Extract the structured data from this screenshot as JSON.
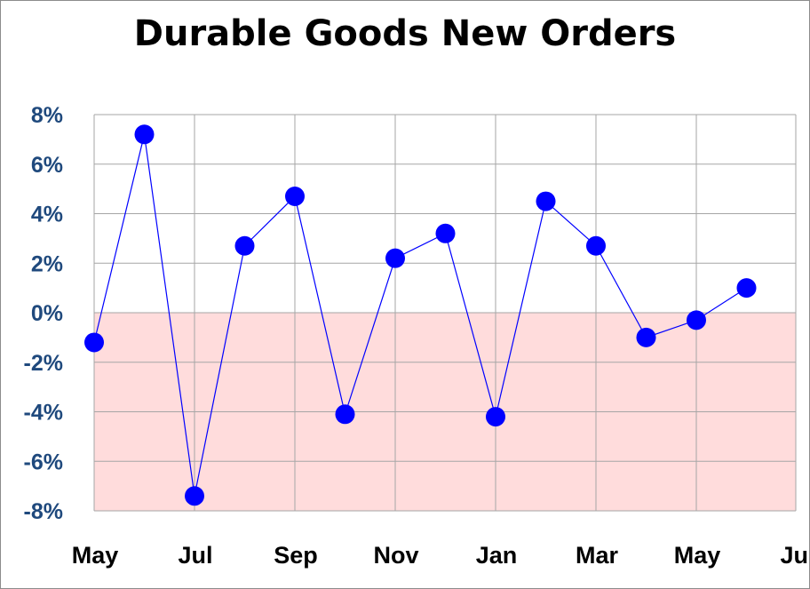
{
  "chart_data": {
    "type": "line",
    "title": "Durable Goods New Orders",
    "xlabel": "",
    "ylabel": "",
    "x_tick_labels": [
      "May",
      "Jul",
      "Sep",
      "Nov",
      "Jan",
      "Mar",
      "May",
      "Jul"
    ],
    "y_tick_labels": [
      "8%",
      "6%",
      "4%",
      "2%",
      "0%",
      "-2%",
      "-4%",
      "-6%",
      "-8%"
    ],
    "ylim": [
      -8,
      8
    ],
    "y_ticks": [
      8,
      6,
      4,
      2,
      0,
      -2,
      -4,
      -6,
      -8
    ],
    "grid": true,
    "negative_region_shaded": true,
    "series": [
      {
        "x": [
          "May",
          "Jun",
          "Jul",
          "Aug",
          "Sep",
          "Oct",
          "Nov",
          "Dec",
          "Jan",
          "Feb",
          "Mar",
          "Apr",
          "May",
          "Jun"
        ],
        "values": [
          -1.2,
          7.2,
          -7.4,
          2.7,
          4.7,
          -4.1,
          2.2,
          3.2,
          -4.2,
          4.5,
          2.7,
          -1.0,
          -0.3,
          1.0
        ]
      }
    ],
    "colors": {
      "line": "#0000ff",
      "marker": "#0000ff",
      "negative_fill": "#ffdcdc",
      "grid": "#a6a6a6",
      "tick_text": "#1f497d",
      "x_tick_text": "#000000",
      "title_text": "#000000"
    }
  }
}
